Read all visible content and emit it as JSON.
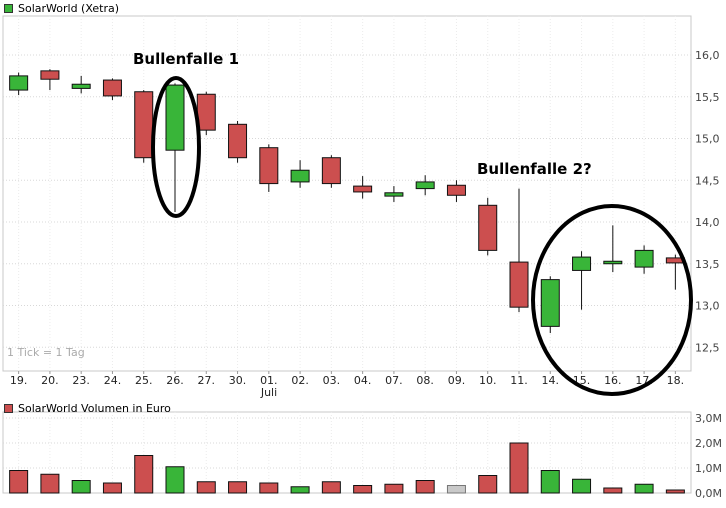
{
  "header": {
    "title": "SolarWorld (Xetra)"
  },
  "volume_header": {
    "title": "SolarWorld Volumen in Euro"
  },
  "watermark": {
    "text": "1 Tick = 1 Tag"
  },
  "annotations": [
    {
      "text": "Bullenfalle 1",
      "circled_dates": [
        "26."
      ]
    },
    {
      "text": "Bullenfalle 2?",
      "circled_dates": [
        "14.",
        "15.",
        "16.",
        "17.",
        "18."
      ]
    }
  ],
  "colors": {
    "up": "#39b539",
    "down": "#cc4f4f",
    "neutral": "#c9c9c9",
    "candle_border": "#111111",
    "grid": "#d8d8d8",
    "grid_v": "#ececec",
    "frame": "#c8c8c8",
    "axis_text": "#444444",
    "date_text": "#222222",
    "annotation": "#000000"
  },
  "chart_data": [
    {
      "type": "candlestick",
      "title": "SolarWorld (Xetra)",
      "xlabel": "",
      "ylabel": "",
      "ylim": [
        12.2,
        16.5
      ],
      "yticks": [
        12.5,
        13.0,
        13.5,
        14.0,
        14.5,
        15.0,
        15.5,
        16.0
      ],
      "ytick_labels": [
        "12,5",
        "13,0",
        "13,5",
        "14,0",
        "14,5",
        "15,0",
        "15,5",
        "16,0"
      ],
      "x_labels": [
        "19.",
        "20.",
        "23.",
        "24.",
        "25.",
        "26.",
        "27.",
        "30.",
        "01.",
        "02.",
        "03.",
        "04.",
        "07.",
        "08.",
        "09.",
        "10.",
        "11.",
        "14.",
        "15.",
        "16.",
        "17.",
        "18."
      ],
      "month_label": {
        "text": "Juli",
        "at_index": 8
      },
      "ohlc": [
        [
          15.58,
          15.79,
          15.52,
          15.75
        ],
        [
          15.81,
          15.83,
          15.58,
          15.71
        ],
        [
          15.6,
          15.75,
          15.54,
          15.65
        ],
        [
          15.7,
          15.72,
          15.46,
          15.51
        ],
        [
          15.56,
          15.58,
          14.71,
          14.77
        ],
        [
          14.86,
          15.66,
          14.12,
          15.64
        ],
        [
          15.53,
          15.56,
          15.04,
          15.1
        ],
        [
          15.17,
          15.21,
          14.71,
          14.77
        ],
        [
          14.89,
          14.93,
          14.36,
          14.46
        ],
        [
          14.48,
          14.74,
          14.41,
          14.62
        ],
        [
          14.77,
          14.8,
          14.41,
          14.46
        ],
        [
          14.43,
          14.55,
          14.28,
          14.36
        ],
        [
          14.31,
          14.43,
          14.24,
          14.35
        ],
        [
          14.4,
          14.56,
          14.32,
          14.48
        ],
        [
          14.44,
          14.5,
          14.24,
          14.32
        ],
        [
          14.2,
          14.29,
          13.6,
          13.66
        ],
        [
          13.52,
          14.4,
          12.92,
          12.98
        ],
        [
          12.75,
          13.35,
          12.67,
          13.31
        ],
        [
          13.42,
          13.65,
          12.95,
          13.58
        ],
        [
          13.5,
          13.96,
          13.4,
          13.53
        ],
        [
          13.46,
          13.72,
          13.38,
          13.66
        ],
        [
          13.57,
          13.61,
          13.19,
          13.51
        ]
      ]
    },
    {
      "type": "bar",
      "title": "SolarWorld Volumen in Euro",
      "ylim_meuro": [
        0,
        3.24
      ],
      "yticks": [
        0,
        1,
        2,
        3
      ],
      "ytick_labels": [
        "0,0M",
        "1,0M",
        "2,0M",
        "3,0M"
      ],
      "x_labels": [
        "19.",
        "20.",
        "23.",
        "24.",
        "25.",
        "26.",
        "27.",
        "30.",
        "01.",
        "02.",
        "03.",
        "04.",
        "07.",
        "08.",
        "09.",
        "10.",
        "11.",
        "14.",
        "15.",
        "16.",
        "17.",
        "18."
      ],
      "values_meuro": [
        0.9,
        0.75,
        0.5,
        0.4,
        1.5,
        1.05,
        0.45,
        0.45,
        0.4,
        0.25,
        0.45,
        0.3,
        0.35,
        0.5,
        0.3,
        0.7,
        2.0,
        0.9,
        0.55,
        0.2,
        0.35,
        0.12
      ],
      "directions": [
        "down",
        "down",
        "up",
        "down",
        "down",
        "up",
        "down",
        "down",
        "down",
        "up",
        "down",
        "down",
        "down",
        "down",
        "neutral",
        "down",
        "down",
        "up",
        "up",
        "down",
        "up",
        "down"
      ]
    }
  ]
}
